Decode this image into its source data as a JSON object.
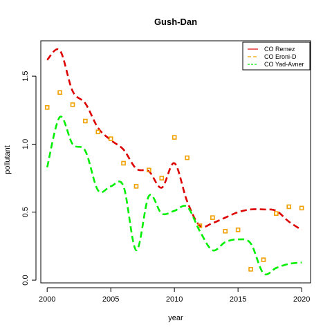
{
  "chart_data": {
    "type": "line",
    "title": "Gush-Dan",
    "xlabel": "year",
    "ylabel": "pollutant",
    "xlim": [
      1999.5,
      2020.7
    ],
    "ylim": [
      -0.02,
      1.76
    ],
    "xticks": [
      2000,
      2005,
      2010,
      2015,
      2020
    ],
    "yticks": [
      0.0,
      0.5,
      1.0,
      1.5
    ],
    "xtick_labels": [
      "2000",
      "2005",
      "2010",
      "2015",
      "2020"
    ],
    "ytick_labels": [
      "0.0",
      "0.5",
      "1.0",
      "1.5"
    ],
    "grid": false,
    "legend_position": "top-right",
    "series": [
      {
        "name": "CO Remez",
        "style": "smooth-dashed-line",
        "color": "#dd0000",
        "x": [
          2000,
          2001,
          2002,
          2003,
          2004,
          2005,
          2006,
          2007,
          2008,
          2009,
          2010,
          2011,
          2012,
          2013,
          2014,
          2015,
          2016,
          2017,
          2018,
          2019,
          2020
        ],
        "y": [
          1.62,
          1.69,
          1.39,
          1.3,
          1.12,
          1.03,
          0.96,
          0.82,
          0.8,
          0.68,
          0.86,
          0.58,
          0.4,
          0.42,
          0.46,
          0.5,
          0.52,
          0.52,
          0.51,
          0.43,
          0.37
        ]
      },
      {
        "name": "CO Eroni-D",
        "style": "square-points",
        "color": "#f0a000",
        "x": [
          2000,
          2001,
          2002,
          2003,
          2004,
          2005,
          2006,
          2007,
          2008,
          2009,
          2010,
          2011,
          2012,
          2013,
          2014,
          2015,
          2016,
          2017,
          2018,
          2019,
          2020
        ],
        "y": [
          1.27,
          1.38,
          1.29,
          1.17,
          1.09,
          1.04,
          0.86,
          0.69,
          0.81,
          0.75,
          1.05,
          0.9,
          0.4,
          0.46,
          0.36,
          0.37,
          0.08,
          0.15,
          0.49,
          0.54,
          0.53
        ]
      },
      {
        "name": "CO Yad-Avner",
        "style": "smooth-dashed-line",
        "color": "#00ee00",
        "x": [
          2000,
          2001,
          2002,
          2003,
          2004,
          2005,
          2006,
          2007,
          2008,
          2009,
          2010,
          2011,
          2012,
          2013,
          2014,
          2015,
          2016,
          2017,
          2018,
          2019,
          2020
        ],
        "y": [
          0.83,
          1.2,
          1.0,
          0.95,
          0.66,
          0.69,
          0.69,
          0.22,
          0.62,
          0.49,
          0.51,
          0.54,
          0.36,
          0.22,
          0.28,
          0.3,
          0.27,
          0.05,
          0.09,
          0.12,
          0.13
        ]
      }
    ]
  }
}
